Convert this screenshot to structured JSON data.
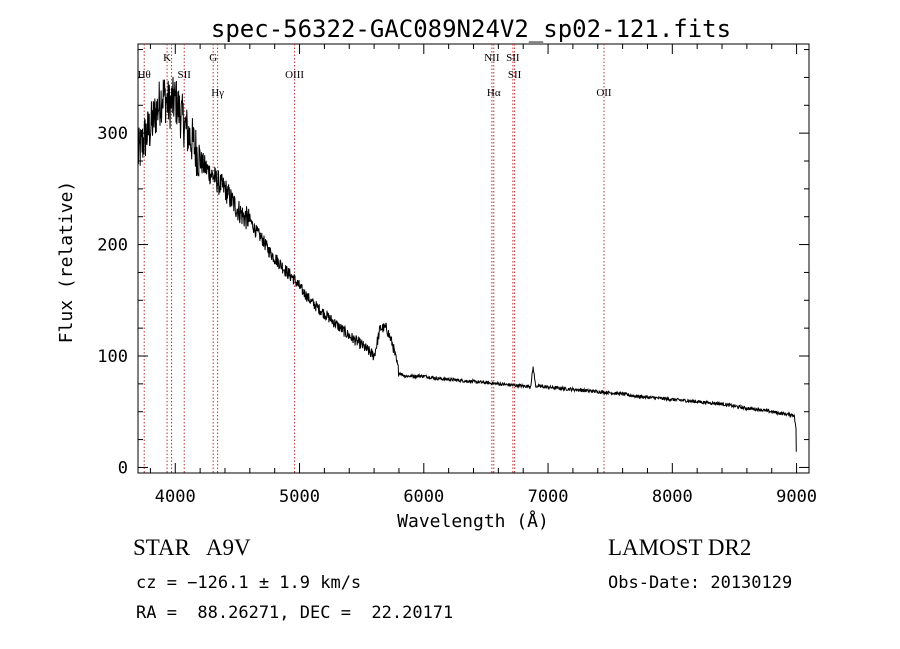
{
  "chart_data": {
    "type": "line",
    "title": "spec-56322-GAC089N24V2_sp02-121.fits",
    "xlabel": "Wavelength (Å)",
    "ylabel": "Flux (relative)",
    "xlim": [
      3700,
      9100
    ],
    "ylim": [
      -5,
      380
    ],
    "xticks": [
      4000,
      5000,
      6000,
      7000,
      8000,
      9000
    ],
    "yticks": [
      0,
      100,
      200,
      300
    ],
    "grid": false,
    "series": [
      {
        "x": [
          3700,
          3750,
          3800,
          3850,
          3900,
          3950,
          4000,
          4050,
          4100,
          4150,
          4200,
          4250,
          4300,
          4350,
          4400,
          4450,
          4500,
          4550,
          4600,
          4650,
          4700,
          4750,
          4800,
          4850,
          4900,
          4950,
          5000,
          5100,
          5200,
          5300,
          5400,
          5500,
          5550,
          5600,
          5650,
          5700,
          5750,
          5800,
          5850,
          5900,
          6000,
          6100,
          6200,
          6300,
          6400,
          6500,
          6600,
          6700,
          6800,
          6860,
          6880,
          6900,
          7000,
          7100,
          7200,
          7300,
          7400,
          7500,
          7600,
          7700,
          7800,
          7900,
          8000,
          8100,
          8200,
          8300,
          8400,
          8500,
          8600,
          8700,
          8800,
          8900,
          8980,
          8995,
          9000
        ],
        "y": [
          280,
          295,
          305,
          320,
          335,
          325,
          330,
          315,
          300,
          290,
          275,
          268,
          262,
          255,
          250,
          240,
          232,
          225,
          222,
          212,
          205,
          195,
          188,
          182,
          175,
          170,
          162,
          148,
          138,
          128,
          118,
          110,
          105,
          100,
          125,
          125,
          110,
          85,
          82,
          82,
          82,
          80,
          79,
          78,
          77,
          76,
          75,
          74,
          73,
          73,
          90,
          73,
          72,
          71,
          70,
          69,
          68,
          67,
          66,
          64,
          63,
          62,
          61,
          60,
          59,
          58,
          57,
          55,
          53,
          52,
          50,
          48,
          47,
          35,
          0
        ]
      }
    ],
    "lines": [
      {
        "x": 3750,
        "label": "Hθ",
        "row": 2
      },
      {
        "x": 3934,
        "label": "K",
        "row": 1
      },
      {
        "x": 3970,
        "label": "H",
        "row": 3
      },
      {
        "x": 4072,
        "label": "SII",
        "row": 2
      },
      {
        "x": 4305,
        "label": "G",
        "row": 1
      },
      {
        "x": 4341,
        "label": "Hγ",
        "row": 3
      },
      {
        "x": 4960,
        "label": "OIII",
        "row": 2
      },
      {
        "x": 6548,
        "label": "NII",
        "row": 1
      },
      {
        "x": 6563,
        "label": "Hα",
        "row": 3
      },
      {
        "x": 6717,
        "label": "SII",
        "row": 1
      },
      {
        "x": 6731,
        "label": "SII",
        "row": 2
      },
      {
        "x": 7450,
        "label": "OII",
        "row": 3
      }
    ],
    "line_color": "#c03030"
  },
  "info": {
    "class_line": "STAR   A9V",
    "survey": "LAMOST DR2",
    "cz": "cz = −126.1 ± 1.9 km/s",
    "obs_date": "Obs-Date: 20130129",
    "radec": "RA =  88.26271, DEC =  22.20171"
  }
}
